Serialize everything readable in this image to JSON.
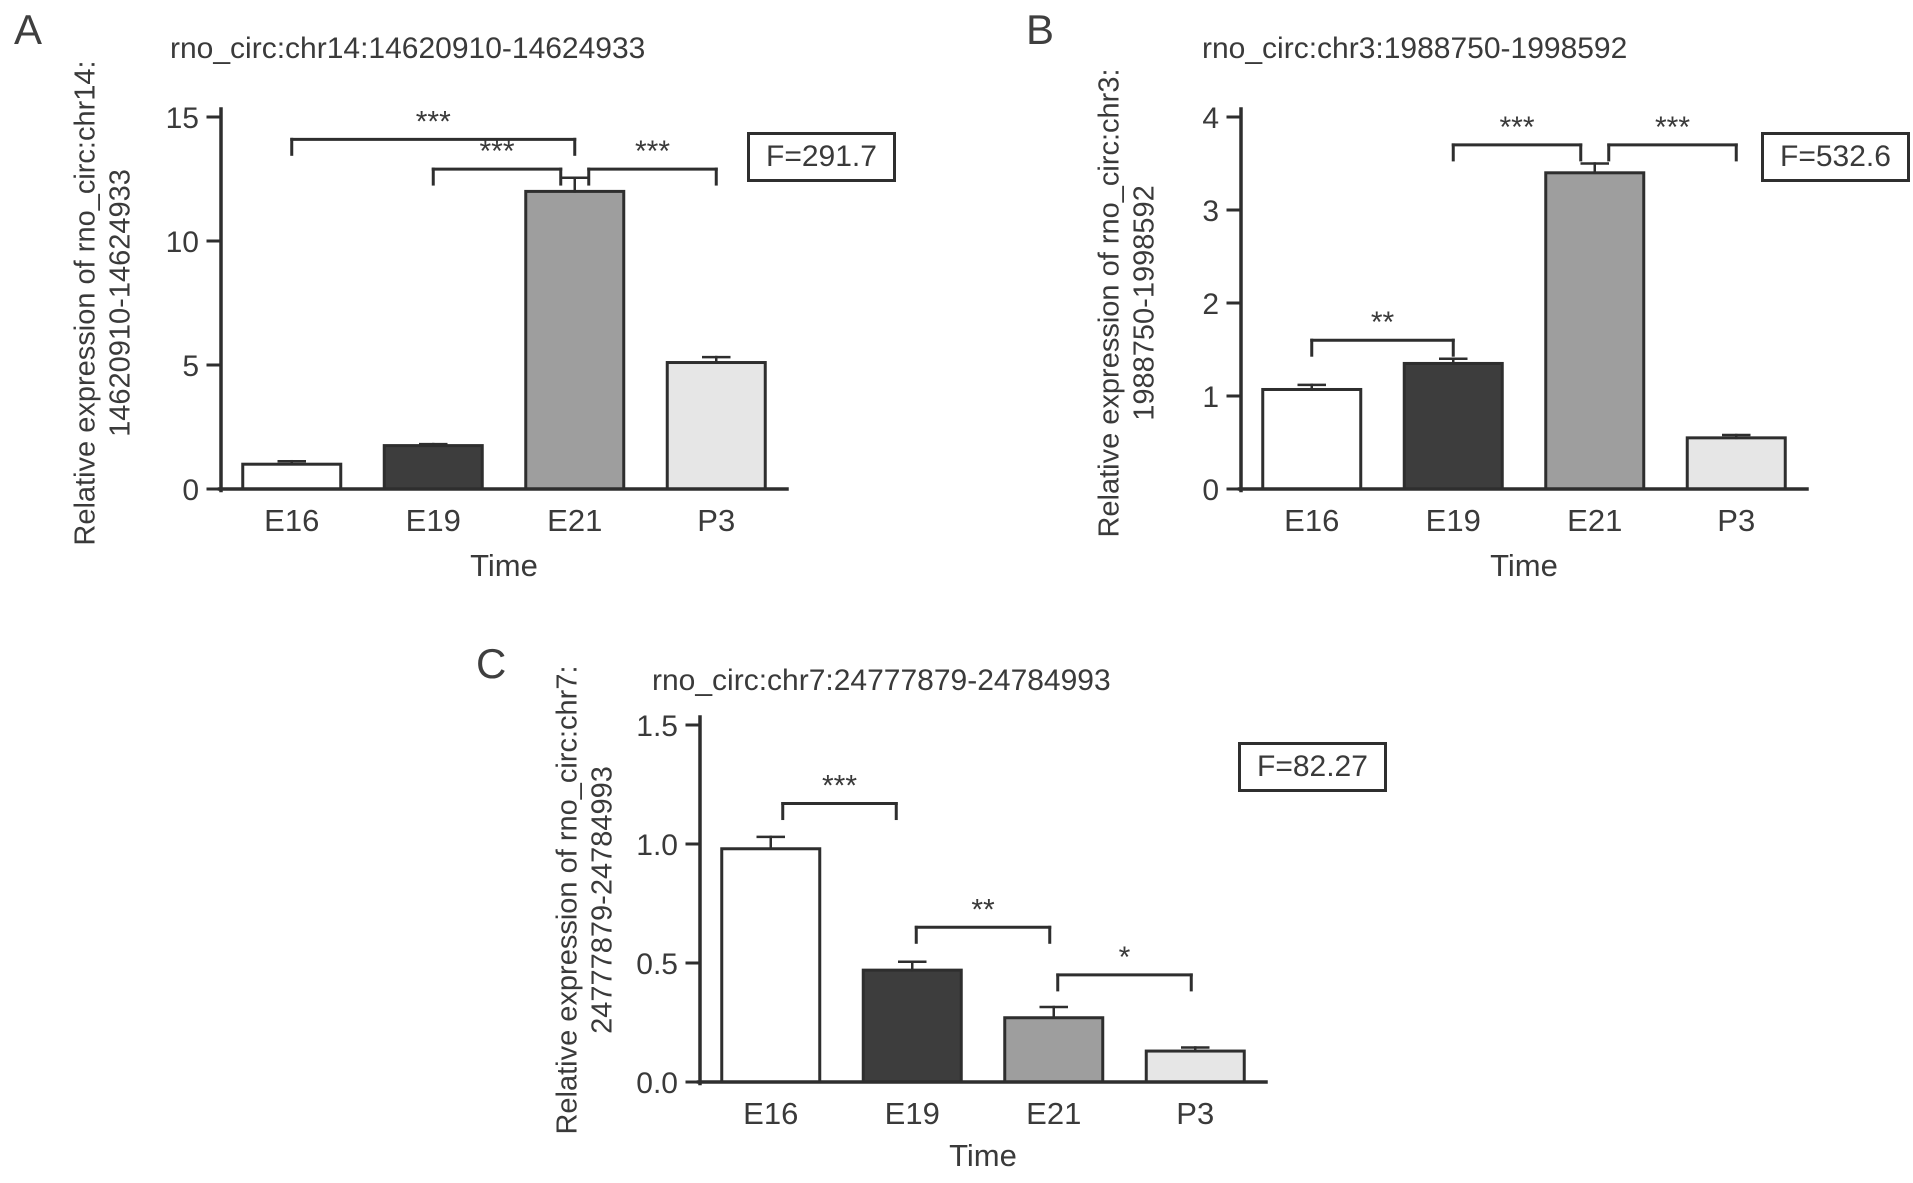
{
  "figure": {
    "background": "#ffffff",
    "text_color": "#3a3a3a",
    "axis_color": "#2e2e2e"
  },
  "chart_data": [
    {
      "type": "bar",
      "panel_letter": "A",
      "title": "rno_circ:chr14:14620910-14624933",
      "ylabel_line1": "Relative expression of rno_circ:chr14:",
      "ylabel_line2": "14620910-14624933",
      "xlabel": "Time",
      "f_statistic": "F=291.7",
      "categories": [
        "E16",
        "E19",
        "E21",
        "P3"
      ],
      "values": [
        1.0,
        1.75,
        12.0,
        5.1
      ],
      "errors": [
        0.12,
        0.06,
        0.55,
        0.22
      ],
      "bar_colors": [
        "#ffffff",
        "#3d3d3d",
        "#9e9e9e",
        "#e6e6e6"
      ],
      "ylim": [
        0,
        15
      ],
      "yticks": [
        0,
        5,
        10,
        15
      ],
      "ytick_labels": [
        "0",
        "5",
        "10",
        "15"
      ],
      "grid": false,
      "legend": false,
      "significance_brackets": [
        {
          "from": "E16",
          "to": "E21",
          "from_index": 0,
          "to_index": 2,
          "y": 14.1,
          "label": "***"
        },
        {
          "from": "E19",
          "to": "E21",
          "from_index": 1,
          "to_index": 2,
          "y": 12.9,
          "label": "***"
        },
        {
          "from": "E21",
          "to": "P3",
          "from_index": 2,
          "to_index": 3,
          "y": 12.9,
          "label": "***"
        }
      ]
    },
    {
      "type": "bar",
      "panel_letter": "B",
      "title": "rno_circ:chr3:1988750-1998592",
      "ylabel_line1": "Relative expression of rno_circ:chr3:",
      "ylabel_line2": "1988750-1998592",
      "xlabel": "Time",
      "f_statistic": "F=532.6",
      "categories": [
        "E16",
        "E19",
        "E21",
        "P3"
      ],
      "values": [
        1.07,
        1.35,
        3.4,
        0.55
      ],
      "errors": [
        0.05,
        0.05,
        0.1,
        0.03
      ],
      "bar_colors": [
        "#ffffff",
        "#3d3d3d",
        "#9e9e9e",
        "#e6e6e6"
      ],
      "ylim": [
        0,
        4
      ],
      "yticks": [
        0,
        1,
        2,
        3,
        4
      ],
      "ytick_labels": [
        "0",
        "1",
        "2",
        "3",
        "4"
      ],
      "grid": false,
      "legend": false,
      "significance_brackets": [
        {
          "from": "E16",
          "to": "E19",
          "from_index": 0,
          "to_index": 1,
          "y": 1.6,
          "label": "**"
        },
        {
          "from": "E19",
          "to": "E21",
          "from_index": 1,
          "to_index": 2,
          "y": 3.7,
          "label": "***"
        },
        {
          "from": "E21",
          "to": "P3",
          "from_index": 2,
          "to_index": 3,
          "y": 3.7,
          "label": "***"
        }
      ]
    },
    {
      "type": "bar",
      "panel_letter": "C",
      "title": "rno_circ:chr7:24777879-24784993",
      "ylabel_line1": "Relative expression of rno_circ:chr7:",
      "ylabel_line2": "24777879-24784993",
      "xlabel": "Time",
      "f_statistic": "F=82.27",
      "categories": [
        "E16",
        "E19",
        "E21",
        "P3"
      ],
      "values": [
        0.98,
        0.47,
        0.27,
        0.13
      ],
      "errors": [
        0.05,
        0.035,
        0.045,
        0.015
      ],
      "bar_colors": [
        "#ffffff",
        "#3d3d3d",
        "#9e9e9e",
        "#e6e6e6"
      ],
      "ylim": [
        0,
        1.5
      ],
      "yticks": [
        0,
        0.5,
        1.0,
        1.5
      ],
      "ytick_labels": [
        "0.0",
        "0.5",
        "1.0",
        "1.5"
      ],
      "grid": false,
      "legend": false,
      "significance_brackets": [
        {
          "from": "E16",
          "to": "E19",
          "from_index": 0,
          "to_index": 1,
          "y": 1.17,
          "label": "***"
        },
        {
          "from": "E19",
          "to": "E21",
          "from_index": 1,
          "to_index": 2,
          "y": 0.65,
          "label": "**"
        },
        {
          "from": "E21",
          "to": "P3",
          "from_index": 2,
          "to_index": 3,
          "y": 0.45,
          "label": "*"
        }
      ]
    }
  ]
}
